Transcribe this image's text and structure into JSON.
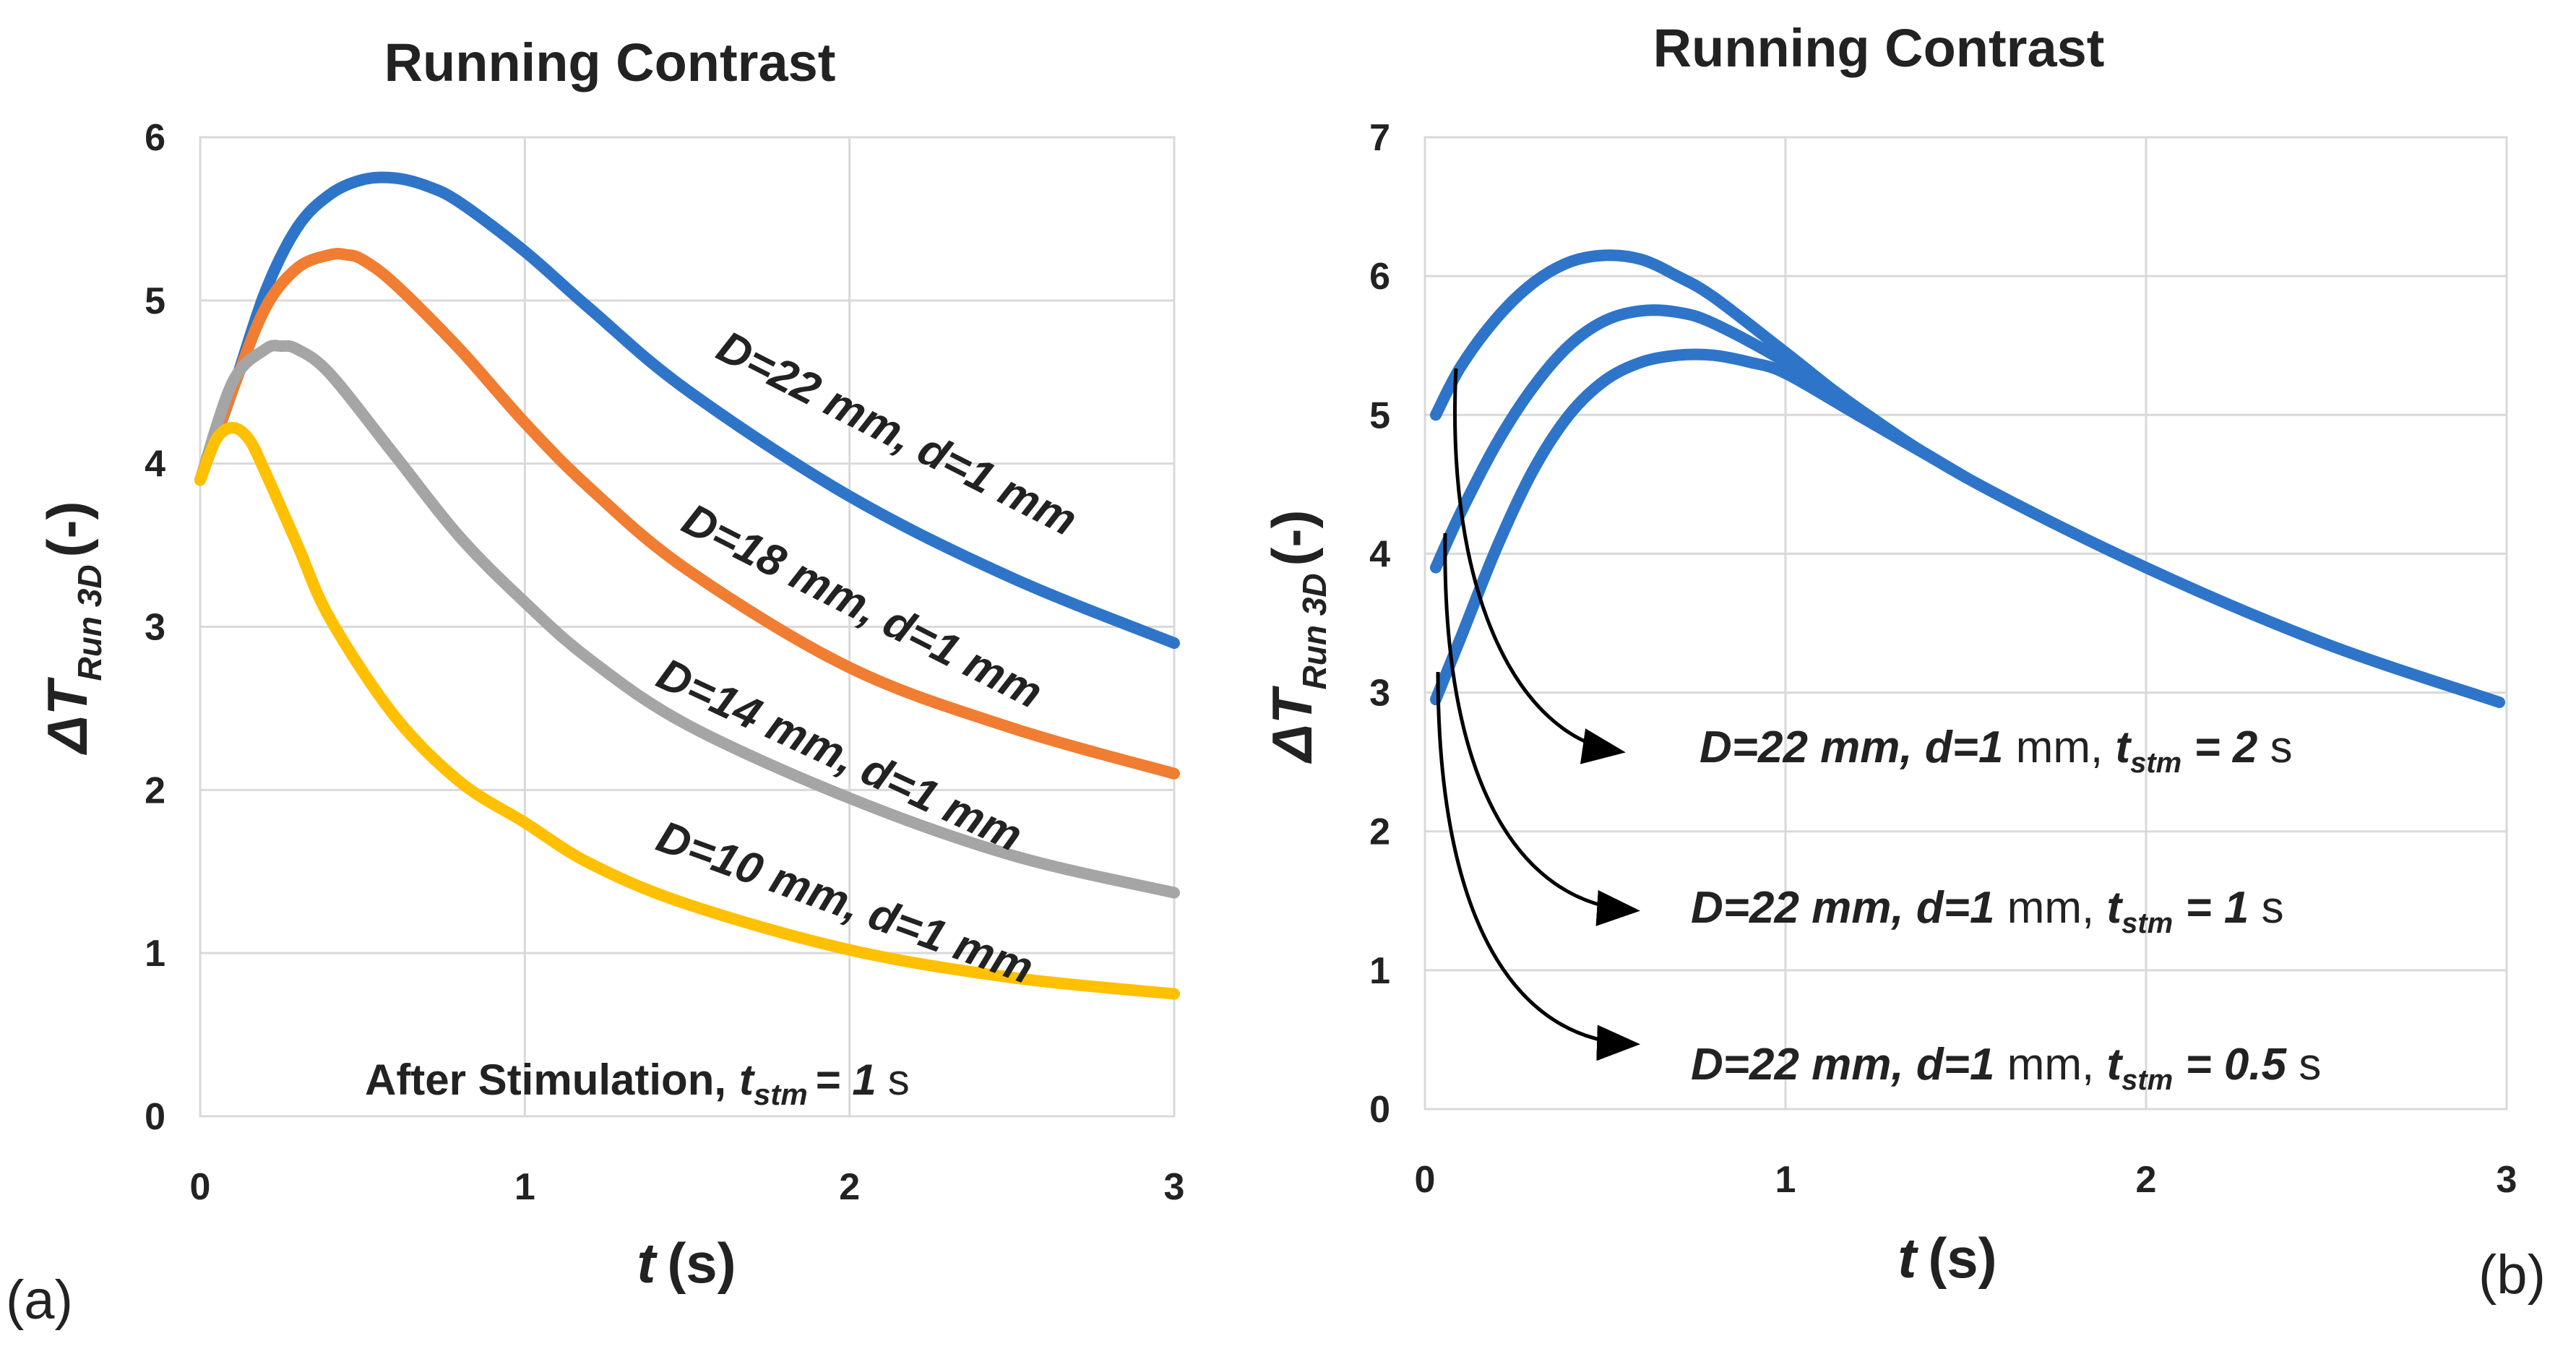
{
  "chart_data": [
    {
      "type": "line",
      "panel_label": "(a)",
      "title": "Running Contrast",
      "xlabel": "t (s)",
      "xlabel_var": "t",
      "xlabel_unit": "(s)",
      "ylabel": "ΔT Run 3D (-)",
      "ylabel_var": "ΔT",
      "ylabel_sub": "Run 3D",
      "ylabel_unit": "(-)",
      "xlim": [
        0,
        3
      ],
      "ylim": [
        0,
        6
      ],
      "xticks": [
        "0",
        "1",
        "2",
        "3"
      ],
      "yticks": [
        "0",
        "1",
        "2",
        "3",
        "4",
        "5",
        "6"
      ],
      "grid": true,
      "annotation": {
        "text": "After Stimulation,",
        "tvar": "t",
        "tsub": "stm",
        "eq": "= 1",
        "unit": "s"
      },
      "series": [
        {
          "name": "D=22 mm, d=1 mm",
          "color": "#2E75C9",
          "x": [
            0,
            0.1,
            0.2,
            0.3,
            0.4,
            0.5,
            0.6,
            0.7,
            0.8,
            1.0,
            1.2,
            1.5,
            2.0,
            2.5,
            3.0
          ],
          "y": [
            3.9,
            4.45,
            5.05,
            5.45,
            5.65,
            5.74,
            5.75,
            5.7,
            5.6,
            5.3,
            4.95,
            4.45,
            3.8,
            3.3,
            2.9
          ]
        },
        {
          "name": "D=18 mm, d=1 mm",
          "color": "#F07D32",
          "x": [
            0,
            0.1,
            0.2,
            0.3,
            0.4,
            0.45,
            0.5,
            0.6,
            0.8,
            1.0,
            1.2,
            1.5,
            2.0,
            2.5,
            3.0
          ],
          "y": [
            3.9,
            4.45,
            4.95,
            5.2,
            5.28,
            5.28,
            5.25,
            5.1,
            4.7,
            4.25,
            3.85,
            3.35,
            2.75,
            2.38,
            2.1
          ]
        },
        {
          "name": "D=14 mm, d=1 mm",
          "color": "#A5A5A5",
          "x": [
            0,
            0.1,
            0.2,
            0.25,
            0.3,
            0.4,
            0.6,
            0.8,
            1.0,
            1.2,
            1.5,
            2.0,
            2.5,
            3.0
          ],
          "y": [
            3.9,
            4.5,
            4.7,
            4.72,
            4.7,
            4.55,
            4.05,
            3.55,
            3.15,
            2.8,
            2.4,
            1.95,
            1.6,
            1.37
          ]
        },
        {
          "name": "D=10 mm, d=1 mm",
          "color": "#FFC000",
          "x": [
            0,
            0.05,
            0.1,
            0.15,
            0.2,
            0.3,
            0.4,
            0.6,
            0.8,
            1.0,
            1.2,
            1.5,
            2.0,
            2.5,
            3.0
          ],
          "y": [
            3.9,
            4.15,
            4.22,
            4.15,
            3.95,
            3.5,
            3.05,
            2.45,
            2.05,
            1.8,
            1.55,
            1.3,
            1.02,
            0.85,
            0.75
          ]
        }
      ],
      "curve_labels": [
        {
          "prefix": "D",
          "text": "=22 mm, ",
          "dvar": "d",
          "tail": "=1 mm"
        },
        {
          "prefix": "D",
          "text": "=18 mm, ",
          "dvar": "d",
          "tail": "=1 mm"
        },
        {
          "prefix": "D",
          "text": "=14 mm, ",
          "dvar": "d",
          "tail": "=1 mm"
        },
        {
          "prefix": "D",
          "text": "=10 mm, ",
          "dvar": "d",
          "tail": "=1 mm"
        }
      ]
    },
    {
      "type": "line",
      "panel_label": "(b)",
      "title": "Running Contrast",
      "xlabel": "t (s)",
      "xlabel_var": "t",
      "xlabel_unit": "(s)",
      "ylabel": "ΔT Run 3D (-)",
      "ylabel_var": "ΔT",
      "ylabel_sub": "Run 3D",
      "ylabel_unit": "(-)",
      "xlim": [
        0,
        3
      ],
      "ylim": [
        0,
        7
      ],
      "xticks": [
        "0",
        "1",
        "2",
        "3"
      ],
      "yticks": [
        "0",
        "1",
        "2",
        "3",
        "4",
        "5",
        "6",
        "7"
      ],
      "grid": true,
      "series": [
        {
          "name": "D=22 mm, d=1 mm, tstm = 2 s",
          "color": "#2E75C9",
          "x": [
            0.03,
            0.1,
            0.2,
            0.3,
            0.4,
            0.5,
            0.6,
            0.7,
            0.8,
            1.0,
            1.2,
            1.5,
            2.0,
            2.5,
            2.98
          ],
          "y": [
            5.0,
            5.35,
            5.7,
            5.95,
            6.1,
            6.15,
            6.12,
            6.0,
            5.85,
            5.45,
            5.05,
            4.55,
            3.9,
            3.35,
            2.93
          ]
        },
        {
          "name": "D=22 mm, d=1 mm, tstm = 1 s",
          "color": "#2E75C9",
          "x": [
            0.03,
            0.1,
            0.2,
            0.3,
            0.4,
            0.5,
            0.6,
            0.7,
            0.8,
            1.0,
            1.2,
            1.5
          ],
          "y": [
            3.9,
            4.3,
            4.8,
            5.2,
            5.5,
            5.68,
            5.75,
            5.74,
            5.66,
            5.38,
            5.02,
            4.55
          ]
        },
        {
          "name": "D=22 mm, d=1 mm, tstm = 0.5 s",
          "color": "#2E75C9",
          "x": [
            0.03,
            0.1,
            0.2,
            0.3,
            0.4,
            0.5,
            0.6,
            0.7,
            0.8,
            0.9,
            1.0,
            1.2,
            1.5
          ],
          "y": [
            2.95,
            3.4,
            4.05,
            4.6,
            5.0,
            5.25,
            5.38,
            5.43,
            5.43,
            5.38,
            5.3,
            5.0,
            4.55
          ]
        }
      ],
      "curve_labels": [
        {
          "prefix": "D",
          "text": "=22 mm, ",
          "dvar": "d",
          "mid": "=1",
          "mm": " mm, ",
          "tvar": "t",
          "tsub": "stm",
          "eq": " = 2",
          "unit": " s"
        },
        {
          "prefix": "D",
          "text": "=22 mm, ",
          "dvar": "d",
          "mid": "=1",
          "mm": " mm, ",
          "tvar": "t",
          "tsub": "stm",
          "eq": " = 1",
          "unit": " s"
        },
        {
          "prefix": "D",
          "text": "=22 mm, ",
          "dvar": "d",
          "mid": "=1",
          "mm": " mm, ",
          "tvar": "t",
          "tsub": "stm",
          "eq": " = 0.5",
          "unit": " s"
        }
      ]
    }
  ]
}
